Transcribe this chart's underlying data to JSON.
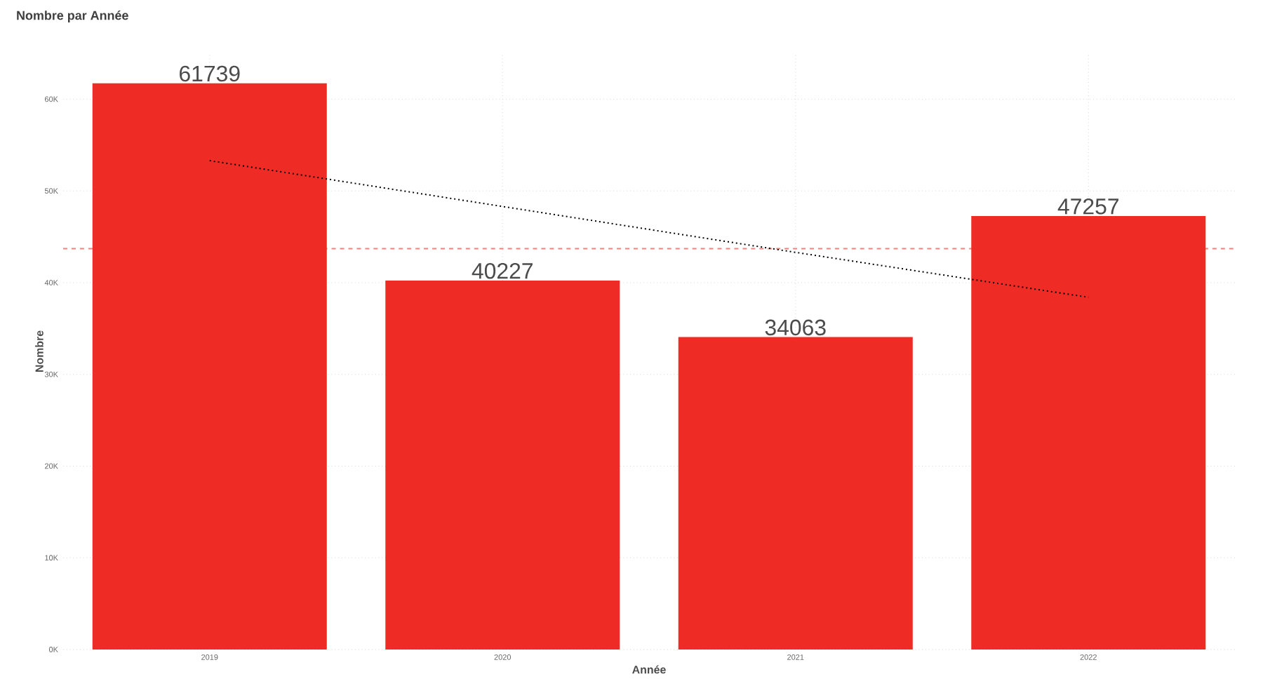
{
  "chart_data": {
    "type": "bar",
    "title": "Nombre par Année",
    "xlabel": "Année",
    "ylabel": "Nombre",
    "categories": [
      "2019",
      "2020",
      "2021",
      "2022"
    ],
    "series": [
      {
        "color": "#ee2b24",
        "values": [
          61739,
          40227,
          34063,
          47257
        ],
        "value_labels": [
          "61739",
          "40227",
          "34063",
          "47257"
        ]
      },
      {
        "type": "line",
        "color": "#000000",
        "line_style": "dotted",
        "values": [
          53300,
          48300,
          43300,
          38400
        ]
      }
    ],
    "ylim": [
      0,
      65000
    ],
    "yticks": [
      {
        "value": 0,
        "label": "0K"
      },
      {
        "value": 10000,
        "label": "10K"
      },
      {
        "value": 20000,
        "label": "20K"
      },
      {
        "value": 30000,
        "label": "30K"
      },
      {
        "value": 40000,
        "label": "40K"
      },
      {
        "value": 50000,
        "label": "50K"
      },
      {
        "value": 60000,
        "label": "60K"
      }
    ],
    "ref_lines": [
      {
        "axis": "y",
        "value": 43700,
        "color": "#f4827c",
        "line_style": "dashed"
      }
    ],
    "grid": true
  }
}
